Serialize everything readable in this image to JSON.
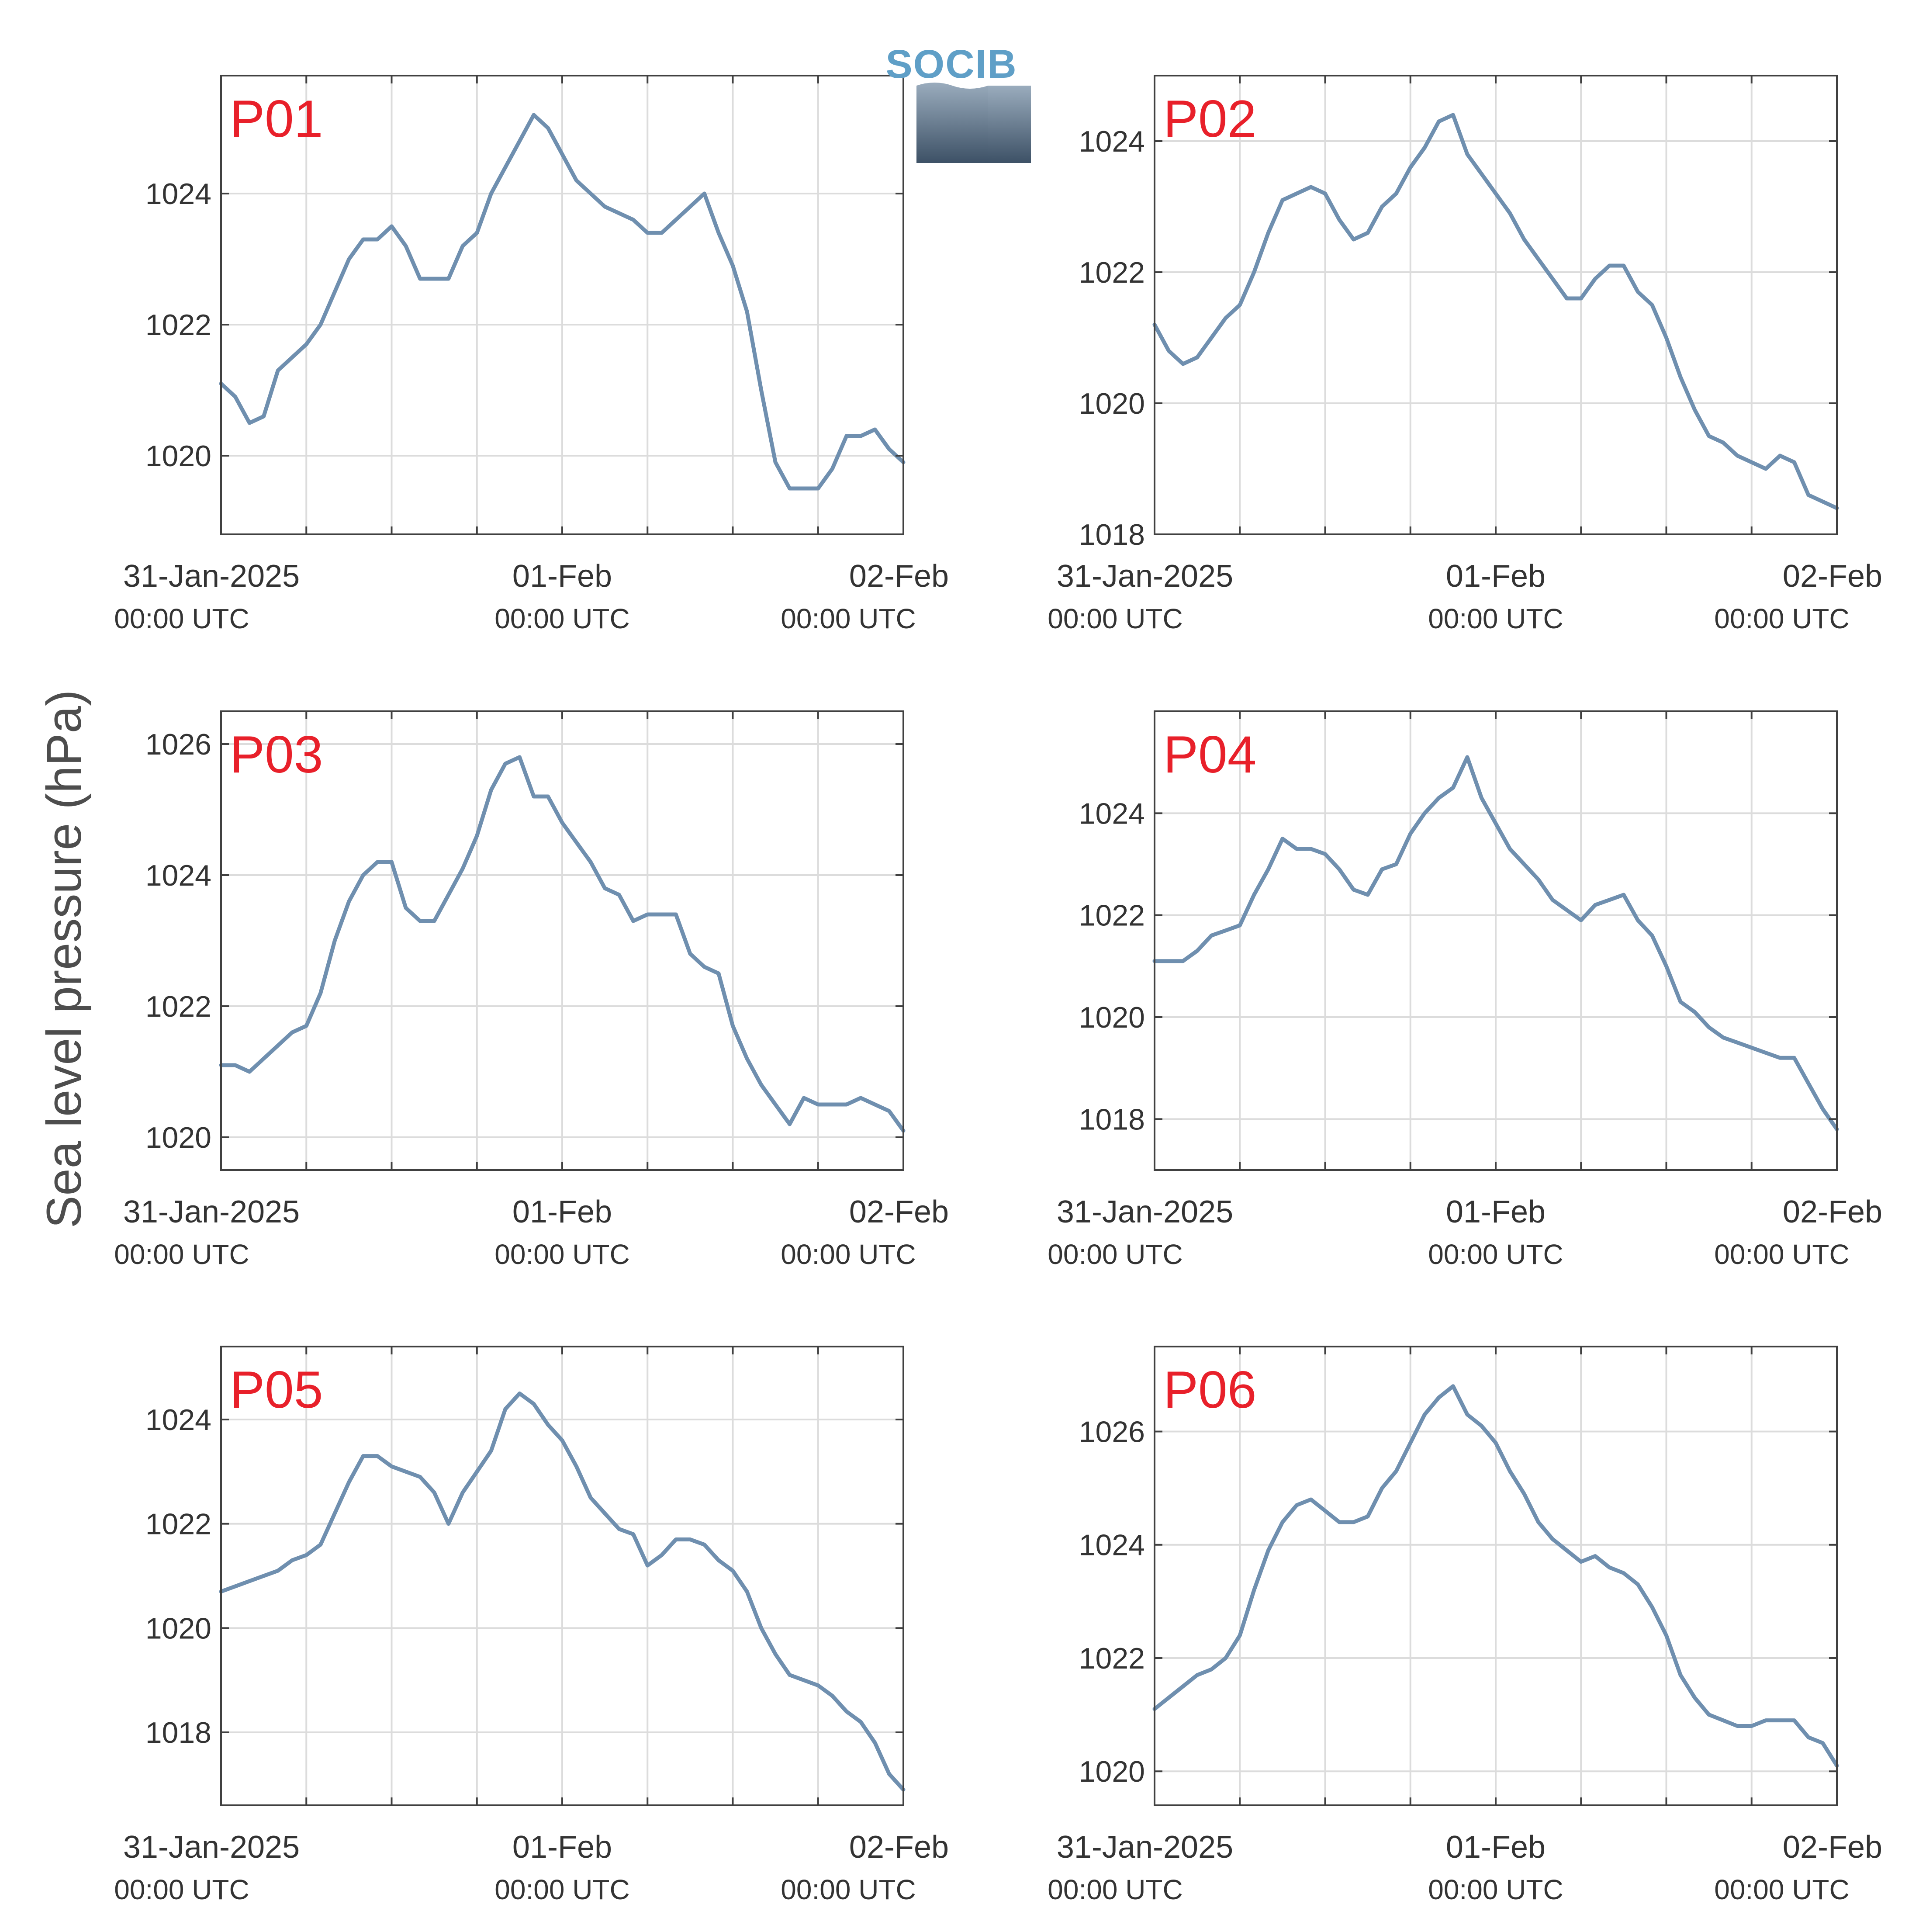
{
  "logo": {
    "text": "SOCIB"
  },
  "ylabel": "Sea level pressure (hPa)",
  "x_ticks": [
    {
      "date": "31-Jan-2025",
      "time": "00:00 UTC"
    },
    {
      "date": "01-Feb",
      "time": "00:00 UTC"
    },
    {
      "date": "02-Feb",
      "time": "00:00 UTC"
    }
  ],
  "colors": {
    "series": "#6f8faf",
    "panel_label": "#e8202a",
    "logo": "#5f9fc7"
  },
  "chart_data": [
    {
      "type": "line",
      "title": "P01",
      "xlim": [
        0,
        48
      ],
      "ylim": [
        1018.8,
        1025.8
      ],
      "yticks": [
        1020,
        1022,
        1024
      ],
      "grid": true,
      "x": [
        0,
        1,
        2,
        3,
        4,
        5,
        6,
        7,
        8,
        9,
        10,
        11,
        12,
        13,
        14,
        15,
        16,
        17,
        18,
        19,
        20,
        21,
        22,
        23,
        24,
        25,
        26,
        27,
        28,
        29,
        30,
        31,
        32,
        33,
        34,
        35,
        36,
        37,
        38,
        39,
        40,
        41,
        42,
        43,
        44,
        45,
        46,
        47,
        48
      ],
      "y": [
        1021.1,
        1020.9,
        1020.5,
        1020.6,
        1021.3,
        1021.5,
        1021.7,
        1022.0,
        1022.5,
        1023.0,
        1023.3,
        1023.3,
        1023.5,
        1023.2,
        1022.7,
        1022.7,
        1022.7,
        1023.2,
        1023.4,
        1024.0,
        1024.4,
        1024.8,
        1025.2,
        1025.0,
        1024.6,
        1024.2,
        1024.0,
        1023.8,
        1023.7,
        1023.6,
        1023.4,
        1023.4,
        1023.6,
        1023.8,
        1024.0,
        1023.4,
        1022.9,
        1022.2,
        1021.0,
        1019.9,
        1019.5,
        1019.5,
        1019.5,
        1019.8,
        1020.3,
        1020.3,
        1020.4,
        1020.1,
        1019.9
      ]
    },
    {
      "type": "line",
      "title": "P02",
      "xlim": [
        0,
        48
      ],
      "ylim": [
        1018.0,
        1025.0
      ],
      "yticks": [
        1018,
        1020,
        1022,
        1024
      ],
      "grid": true,
      "x": [
        0,
        1,
        2,
        3,
        4,
        5,
        6,
        7,
        8,
        9,
        10,
        11,
        12,
        13,
        14,
        15,
        16,
        17,
        18,
        19,
        20,
        21,
        22,
        23,
        24,
        25,
        26,
        27,
        28,
        29,
        30,
        31,
        32,
        33,
        34,
        35,
        36,
        37,
        38,
        39,
        40,
        41,
        42,
        43,
        44,
        45,
        46,
        47,
        48
      ],
      "y": [
        1021.2,
        1020.8,
        1020.6,
        1020.7,
        1021.0,
        1021.3,
        1021.5,
        1022.0,
        1022.6,
        1023.1,
        1023.2,
        1023.3,
        1023.2,
        1022.8,
        1022.5,
        1022.6,
        1023.0,
        1023.2,
        1023.6,
        1023.9,
        1024.3,
        1024.4,
        1023.8,
        1023.5,
        1023.2,
        1022.9,
        1022.5,
        1022.2,
        1021.9,
        1021.6,
        1021.6,
        1021.9,
        1022.1,
        1022.1,
        1021.7,
        1021.5,
        1021.0,
        1020.4,
        1019.9,
        1019.5,
        1019.4,
        1019.2,
        1019.1,
        1019.0,
        1019.2,
        1019.1,
        1018.6,
        1018.5,
        1018.4
      ]
    },
    {
      "type": "line",
      "title": "P03",
      "xlim": [
        0,
        48
      ],
      "ylim": [
        1019.5,
        1026.5
      ],
      "yticks": [
        1020,
        1022,
        1024,
        1026
      ],
      "grid": true,
      "x": [
        0,
        1,
        2,
        3,
        4,
        5,
        6,
        7,
        8,
        9,
        10,
        11,
        12,
        13,
        14,
        15,
        16,
        17,
        18,
        19,
        20,
        21,
        22,
        23,
        24,
        25,
        26,
        27,
        28,
        29,
        30,
        31,
        32,
        33,
        34,
        35,
        36,
        37,
        38,
        39,
        40,
        41,
        42,
        43,
        44,
        45,
        46,
        47,
        48
      ],
      "y": [
        1021.1,
        1021.1,
        1021.0,
        1021.2,
        1021.4,
        1021.6,
        1021.7,
        1022.2,
        1023.0,
        1023.6,
        1024.0,
        1024.2,
        1024.2,
        1023.5,
        1023.3,
        1023.3,
        1023.7,
        1024.1,
        1024.6,
        1025.3,
        1025.7,
        1025.8,
        1025.2,
        1025.2,
        1024.8,
        1024.5,
        1024.2,
        1023.8,
        1023.7,
        1023.3,
        1023.4,
        1023.4,
        1023.4,
        1022.8,
        1022.6,
        1022.5,
        1021.7,
        1021.2,
        1020.8,
        1020.5,
        1020.2,
        1020.6,
        1020.5,
        1020.5,
        1020.5,
        1020.6,
        1020.5,
        1020.4,
        1020.1
      ]
    },
    {
      "type": "line",
      "title": "P04",
      "xlim": [
        0,
        48
      ],
      "ylim": [
        1017.0,
        1026.0
      ],
      "yticks": [
        1018,
        1020,
        1022,
        1024
      ],
      "grid": true,
      "x": [
        0,
        1,
        2,
        3,
        4,
        5,
        6,
        7,
        8,
        9,
        10,
        11,
        12,
        13,
        14,
        15,
        16,
        17,
        18,
        19,
        20,
        21,
        22,
        23,
        24,
        25,
        26,
        27,
        28,
        29,
        30,
        31,
        32,
        33,
        34,
        35,
        36,
        37,
        38,
        39,
        40,
        41,
        42,
        43,
        44,
        45,
        46,
        47,
        48
      ],
      "y": [
        1021.1,
        1021.1,
        1021.1,
        1021.3,
        1021.6,
        1021.7,
        1021.8,
        1022.4,
        1022.9,
        1023.5,
        1023.3,
        1023.3,
        1023.2,
        1022.9,
        1022.5,
        1022.4,
        1022.9,
        1023.0,
        1023.6,
        1024.0,
        1024.3,
        1024.5,
        1025.1,
        1024.3,
        1023.8,
        1023.3,
        1023.0,
        1022.7,
        1022.3,
        1022.1,
        1021.9,
        1022.2,
        1022.3,
        1022.4,
        1021.9,
        1021.6,
        1021.0,
        1020.3,
        1020.1,
        1019.8,
        1019.6,
        1019.5,
        1019.4,
        1019.3,
        1019.2,
        1019.2,
        1018.7,
        1018.2,
        1017.8
      ]
    },
    {
      "type": "line",
      "title": "P05",
      "xlim": [
        0,
        48
      ],
      "ylim": [
        1016.6,
        1025.4
      ],
      "yticks": [
        1018,
        1020,
        1022,
        1024
      ],
      "grid": true,
      "x": [
        0,
        1,
        2,
        3,
        4,
        5,
        6,
        7,
        8,
        9,
        10,
        11,
        12,
        13,
        14,
        15,
        16,
        17,
        18,
        19,
        20,
        21,
        22,
        23,
        24,
        25,
        26,
        27,
        28,
        29,
        30,
        31,
        32,
        33,
        34,
        35,
        36,
        37,
        38,
        39,
        40,
        41,
        42,
        43,
        44,
        45,
        46,
        47,
        48
      ],
      "y": [
        1020.7,
        1020.8,
        1020.9,
        1021.0,
        1021.1,
        1021.3,
        1021.4,
        1021.6,
        1022.2,
        1022.8,
        1023.3,
        1023.3,
        1023.1,
        1023.0,
        1022.9,
        1022.6,
        1022.0,
        1022.6,
        1023.0,
        1023.4,
        1024.2,
        1024.5,
        1024.3,
        1023.9,
        1023.6,
        1023.1,
        1022.5,
        1022.2,
        1021.9,
        1021.8,
        1021.2,
        1021.4,
        1021.7,
        1021.7,
        1021.6,
        1021.3,
        1021.1,
        1020.7,
        1020.0,
        1019.5,
        1019.1,
        1019.0,
        1018.9,
        1018.7,
        1018.4,
        1018.2,
        1017.8,
        1017.2,
        1016.9
      ]
    },
    {
      "type": "line",
      "title": "P06",
      "xlim": [
        0,
        48
      ],
      "ylim": [
        1019.4,
        1027.5
      ],
      "yticks": [
        1020,
        1022,
        1024,
        1026
      ],
      "grid": true,
      "x": [
        0,
        1,
        2,
        3,
        4,
        5,
        6,
        7,
        8,
        9,
        10,
        11,
        12,
        13,
        14,
        15,
        16,
        17,
        18,
        19,
        20,
        21,
        22,
        23,
        24,
        25,
        26,
        27,
        28,
        29,
        30,
        31,
        32,
        33,
        34,
        35,
        36,
        37,
        38,
        39,
        40,
        41,
        42,
        43,
        44,
        45,
        46,
        47,
        48
      ],
      "y": [
        1021.1,
        1021.3,
        1021.5,
        1021.7,
        1021.8,
        1022.0,
        1022.4,
        1023.2,
        1023.9,
        1024.4,
        1024.7,
        1024.8,
        1024.6,
        1024.4,
        1024.4,
        1024.5,
        1025.0,
        1025.3,
        1025.8,
        1026.3,
        1026.6,
        1026.8,
        1026.3,
        1026.1,
        1025.8,
        1025.3,
        1024.9,
        1024.4,
        1024.1,
        1023.9,
        1023.7,
        1023.8,
        1023.6,
        1023.5,
        1023.3,
        1022.9,
        1022.4,
        1021.7,
        1021.3,
        1021.0,
        1020.9,
        1020.8,
        1020.8,
        1020.9,
        1020.9,
        1020.9,
        1020.6,
        1020.5,
        1020.1
      ]
    }
  ]
}
